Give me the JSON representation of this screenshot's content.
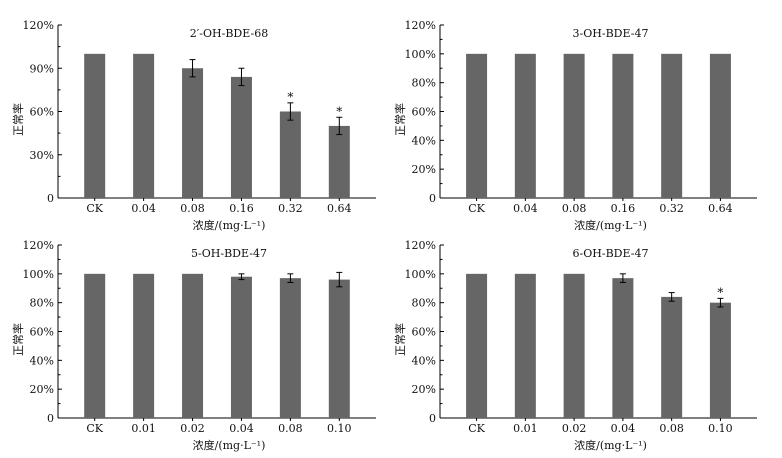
{
  "chart_data": [
    {
      "type": "bar",
      "title": "2′-OH-BDE-68",
      "xlabel": "浓度/(mg·L⁻¹)",
      "ylabel": "正常率",
      "categories": [
        "CK",
        "0.04",
        "0.08",
        "0.16",
        "0.32",
        "0.64"
      ],
      "values": [
        100,
        100,
        90,
        84,
        60,
        50
      ],
      "errors": [
        0,
        0,
        6,
        6,
        6,
        6
      ],
      "significance": [
        "",
        "",
        "",
        "",
        "*",
        "*"
      ],
      "ylim": [
        0,
        120
      ],
      "yticks": [
        0,
        30,
        60,
        90,
        120
      ],
      "ytick_labels": [
        "0",
        "30%",
        "60%",
        "90%",
        "120%"
      ],
      "bar_color": "#666666"
    },
    {
      "type": "bar",
      "title": "3-OH-BDE-47",
      "xlabel": "浓度/(mg·L⁻¹)",
      "ylabel": "正常率",
      "categories": [
        "CK",
        "0.04",
        "0.08",
        "0.16",
        "0.32",
        "0.64"
      ],
      "values": [
        100,
        100,
        100,
        100,
        100,
        100
      ],
      "errors": [
        0,
        0,
        0,
        0,
        0,
        0
      ],
      "significance": [
        "",
        "",
        "",
        "",
        "",
        ""
      ],
      "ylim": [
        0,
        120
      ],
      "yticks": [
        0,
        20,
        40,
        60,
        80,
        100,
        120
      ],
      "ytick_labels": [
        "0",
        "20%",
        "40%",
        "60%",
        "80%",
        "100%",
        "120%"
      ],
      "bar_color": "#666666"
    },
    {
      "type": "bar",
      "title": "5-OH-BDE-47",
      "xlabel": "浓度/(mg·L⁻¹)",
      "ylabel": "正常率",
      "categories": [
        "CK",
        "0.01",
        "0.02",
        "0.04",
        "0.08",
        "0.10"
      ],
      "values": [
        100,
        100,
        100,
        98,
        97,
        96
      ],
      "errors": [
        0,
        0,
        0,
        2,
        3,
        5
      ],
      "significance": [
        "",
        "",
        "",
        "",
        "",
        ""
      ],
      "ylim": [
        0,
        120
      ],
      "yticks": [
        0,
        20,
        40,
        60,
        80,
        100,
        120
      ],
      "ytick_labels": [
        "0",
        "20%",
        "40%",
        "60%",
        "80%",
        "100%",
        "120%"
      ],
      "bar_color": "#666666"
    },
    {
      "type": "bar",
      "title": "6-OH-BDE-47",
      "xlabel": "浓度/(mg·L⁻¹)",
      "ylabel": "正常率",
      "categories": [
        "CK",
        "0.01",
        "0.02",
        "0.04",
        "0.08",
        "0.10"
      ],
      "values": [
        100,
        100,
        100,
        97,
        84,
        80
      ],
      "errors": [
        0,
        0,
        0,
        3,
        3,
        3
      ],
      "significance": [
        "",
        "",
        "",
        "",
        "",
        "*"
      ],
      "ylim": [
        0,
        120
      ],
      "yticks": [
        0,
        20,
        40,
        60,
        80,
        100,
        120
      ],
      "ytick_labels": [
        "0",
        "20%",
        "40%",
        "60%",
        "80%",
        "100%",
        "120%"
      ],
      "bar_color": "#666666"
    }
  ]
}
